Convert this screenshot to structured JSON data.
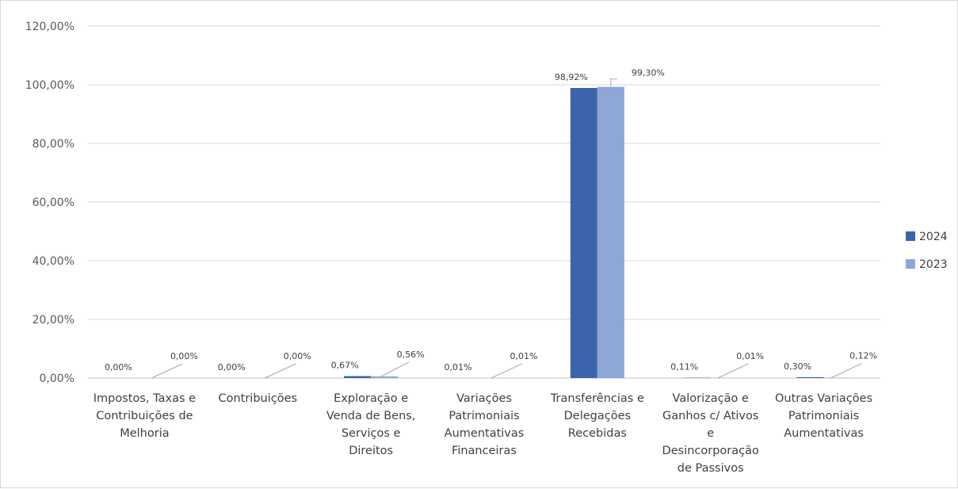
{
  "chart_data": {
    "type": "bar",
    "categories": [
      "Impostos, Taxas e Contribuições de Melhoria",
      "Contribuições",
      "Exploração e Venda de Bens, Serviços e Direitos",
      "Variações Patrimoniais Aumentativas Financeiras",
      "Transferências e Delegações Recebidas",
      "Valorização e Ganhos c/ Ativos e Desincorporação de Passivos",
      "Outras Variações Patrimoniais Aumentativas"
    ],
    "category_lines": [
      [
        "Impostos, Taxas e",
        "Contribuições de",
        "Melhoria"
      ],
      [
        "Contribuições"
      ],
      [
        "Exploração e",
        "Venda de Bens,",
        "Serviços e",
        "Direitos"
      ],
      [
        "Variações",
        "Patrimoniais",
        "Aumentativas",
        "Financeiras"
      ],
      [
        "Transferências e",
        "Delegações",
        "Recebidas"
      ],
      [
        "Valorização e",
        "Ganhos c/ Ativos",
        "e",
        "Desincorporação",
        "de Passivos"
      ],
      [
        "Outras Variações",
        "Patrimoniais",
        "Aumentativas"
      ]
    ],
    "series": [
      {
        "name": "2024",
        "color": "#3c64ac",
        "values": [
          0.0,
          0.0,
          0.67,
          0.01,
          98.92,
          0.11,
          0.3
        ],
        "labels": [
          "0,00%",
          "0,00%",
          "0,67%",
          "0,01%",
          "98,92%",
          "0,11%",
          "0,30%"
        ]
      },
      {
        "name": "2023",
        "color": "#8fa7d6",
        "values": [
          0.0,
          0.0,
          0.56,
          0.01,
          99.3,
          0.01,
          0.12
        ],
        "labels": [
          "0,00%",
          "0,00%",
          "0,56%",
          "0,01%",
          "99,30%",
          "0,01%",
          "0,12%"
        ]
      }
    ],
    "y_ticks": [
      0,
      20,
      40,
      60,
      80,
      100,
      120
    ],
    "y_tick_labels": [
      "0,00%",
      "20,00%",
      "40,00%",
      "60,00%",
      "80,00%",
      "100,00%",
      "120,00%"
    ],
    "ylim": [
      0,
      120
    ],
    "grid": true,
    "legend_position": "right",
    "title": "",
    "xlabel": "",
    "ylabel": ""
  }
}
